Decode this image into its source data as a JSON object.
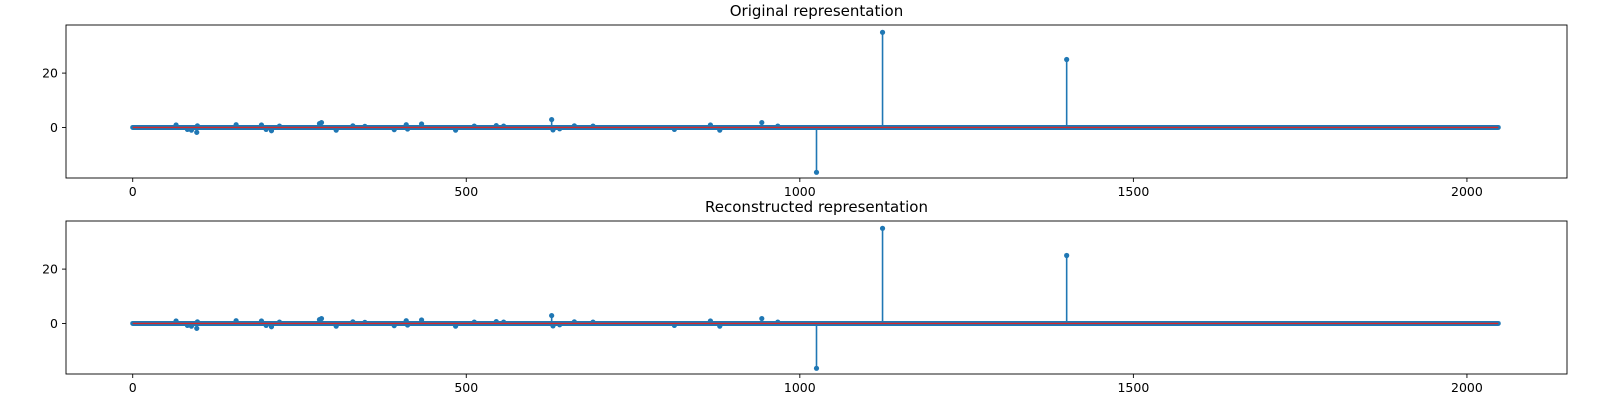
{
  "colors": {
    "stem": "#1f77b4",
    "baseline": "#d62728",
    "axis": "#000000"
  },
  "chart_data": [
    {
      "type": "stem",
      "title": "Original representation",
      "xlabel": "",
      "ylabel": "",
      "xlim": [
        -100,
        2150
      ],
      "ylim": [
        -18.6,
        37.7
      ],
      "xticks": [
        0,
        500,
        1000,
        1500,
        2000
      ],
      "yticks": [
        0,
        20
      ],
      "grid": false,
      "legend": "none",
      "n_points": 2048,
      "spikes": [
        {
          "x": 65,
          "y": 0.9
        },
        {
          "x": 82,
          "y": -0.7
        },
        {
          "x": 88,
          "y": -1.0
        },
        {
          "x": 96,
          "y": -1.8
        },
        {
          "x": 97,
          "y": 0.6
        },
        {
          "x": 155,
          "y": 1.0
        },
        {
          "x": 193,
          "y": 0.9
        },
        {
          "x": 200,
          "y": -0.7
        },
        {
          "x": 208,
          "y": -1.2
        },
        {
          "x": 220,
          "y": 0.5
        },
        {
          "x": 280,
          "y": 1.4
        },
        {
          "x": 283,
          "y": 1.8
        },
        {
          "x": 305,
          "y": -1.0
        },
        {
          "x": 330,
          "y": 0.6
        },
        {
          "x": 348,
          "y": 0.4
        },
        {
          "x": 392,
          "y": -0.8
        },
        {
          "x": 410,
          "y": 1.0
        },
        {
          "x": 412,
          "y": -0.6
        },
        {
          "x": 433,
          "y": 1.3
        },
        {
          "x": 484,
          "y": -1.0
        },
        {
          "x": 512,
          "y": 0.5
        },
        {
          "x": 545,
          "y": 0.7
        },
        {
          "x": 556,
          "y": 0.5
        },
        {
          "x": 628,
          "y": 2.9
        },
        {
          "x": 630,
          "y": -0.9
        },
        {
          "x": 640,
          "y": -0.5
        },
        {
          "x": 662,
          "y": 0.6
        },
        {
          "x": 690,
          "y": 0.5
        },
        {
          "x": 812,
          "y": -0.7
        },
        {
          "x": 866,
          "y": 0.9
        },
        {
          "x": 880,
          "y": -1.0
        },
        {
          "x": 943,
          "y": 1.8
        },
        {
          "x": 967,
          "y": 0.5
        },
        {
          "x": 1025,
          "y": -16.5
        },
        {
          "x": 1124,
          "y": 35.0
        },
        {
          "x": 1400,
          "y": 25.0
        }
      ]
    },
    {
      "type": "stem",
      "title": "Reconstructed representation",
      "xlabel": "",
      "ylabel": "",
      "xlim": [
        -100,
        2150
      ],
      "ylim": [
        -18.6,
        37.7
      ],
      "xticks": [
        0,
        500,
        1000,
        1500,
        2000
      ],
      "yticks": [
        0,
        20
      ],
      "grid": false,
      "legend": "none",
      "n_points": 2048,
      "spikes": [
        {
          "x": 65,
          "y": 0.9
        },
        {
          "x": 82,
          "y": -0.7
        },
        {
          "x": 88,
          "y": -1.0
        },
        {
          "x": 96,
          "y": -1.8
        },
        {
          "x": 97,
          "y": 0.6
        },
        {
          "x": 155,
          "y": 1.0
        },
        {
          "x": 193,
          "y": 0.9
        },
        {
          "x": 200,
          "y": -0.7
        },
        {
          "x": 208,
          "y": -1.2
        },
        {
          "x": 220,
          "y": 0.5
        },
        {
          "x": 280,
          "y": 1.4
        },
        {
          "x": 283,
          "y": 1.8
        },
        {
          "x": 305,
          "y": -1.0
        },
        {
          "x": 330,
          "y": 0.6
        },
        {
          "x": 348,
          "y": 0.4
        },
        {
          "x": 392,
          "y": -0.8
        },
        {
          "x": 410,
          "y": 1.0
        },
        {
          "x": 412,
          "y": -0.6
        },
        {
          "x": 433,
          "y": 1.3
        },
        {
          "x": 484,
          "y": -1.0
        },
        {
          "x": 512,
          "y": 0.5
        },
        {
          "x": 545,
          "y": 0.7
        },
        {
          "x": 556,
          "y": 0.5
        },
        {
          "x": 628,
          "y": 2.9
        },
        {
          "x": 630,
          "y": -0.9
        },
        {
          "x": 640,
          "y": -0.5
        },
        {
          "x": 662,
          "y": 0.6
        },
        {
          "x": 690,
          "y": 0.5
        },
        {
          "x": 812,
          "y": -0.7
        },
        {
          "x": 866,
          "y": 0.9
        },
        {
          "x": 880,
          "y": -1.0
        },
        {
          "x": 943,
          "y": 1.8
        },
        {
          "x": 967,
          "y": 0.5
        },
        {
          "x": 1025,
          "y": -16.5
        },
        {
          "x": 1124,
          "y": 35.0
        },
        {
          "x": 1400,
          "y": 25.0
        }
      ]
    }
  ]
}
